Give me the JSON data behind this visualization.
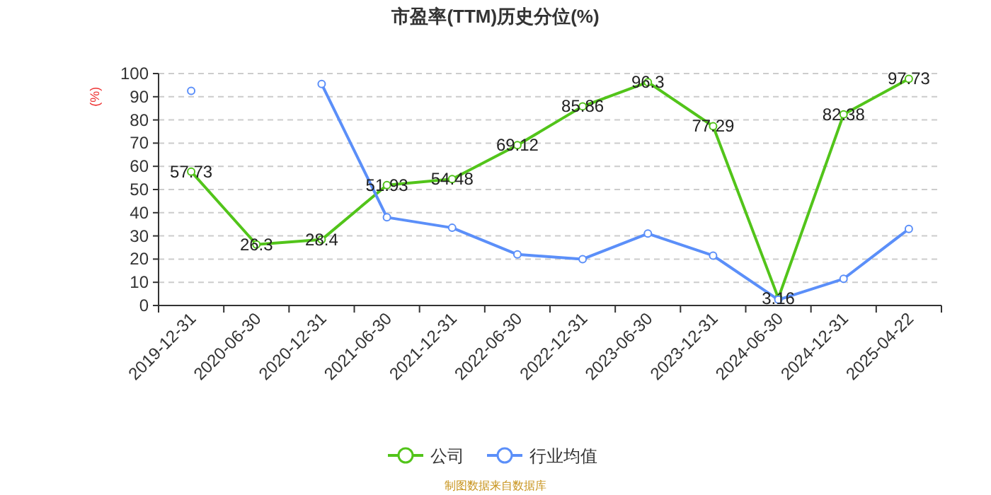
{
  "chart_data": {
    "type": "line",
    "title": "市盈率(TTM)历史分位(%)",
    "ylabel": "(%)",
    "categories": [
      "2019-12-31",
      "2020-06-30",
      "2020-12-31",
      "2021-06-30",
      "2021-12-31",
      "2022-06-30",
      "2022-12-31",
      "2023-06-30",
      "2023-12-31",
      "2024-06-30",
      "2024-12-31",
      "2025-04-22"
    ],
    "series": [
      {
        "name": "公司",
        "color": "#52c41a",
        "values": [
          57.73,
          26.3,
          28.4,
          51.93,
          54.48,
          69.12,
          85.86,
          96.3,
          77.29,
          3.16,
          82.38,
          97.73
        ],
        "value_labels": [
          "57.73",
          "26.3",
          "28.4",
          "51.93",
          "54.48",
          "69.12",
          "85.86",
          "96.3",
          "77.29",
          "3.16",
          "82.38",
          "97.73"
        ]
      },
      {
        "name": "行业均值",
        "color": "#5b8ff9",
        "values": [
          92.5,
          null,
          95.5,
          38,
          33.5,
          22,
          20,
          31,
          21.5,
          2.5,
          11.5,
          33
        ]
      }
    ],
    "ylim": [
      0,
      100
    ],
    "yticks": [
      0,
      10,
      20,
      30,
      40,
      50,
      60,
      70,
      80,
      90,
      100
    ],
    "grid": "y",
    "legend": "bottom",
    "marker": "circle",
    "line_style": "solid",
    "annotations": [
      "制图数据来自数据库"
    ]
  }
}
